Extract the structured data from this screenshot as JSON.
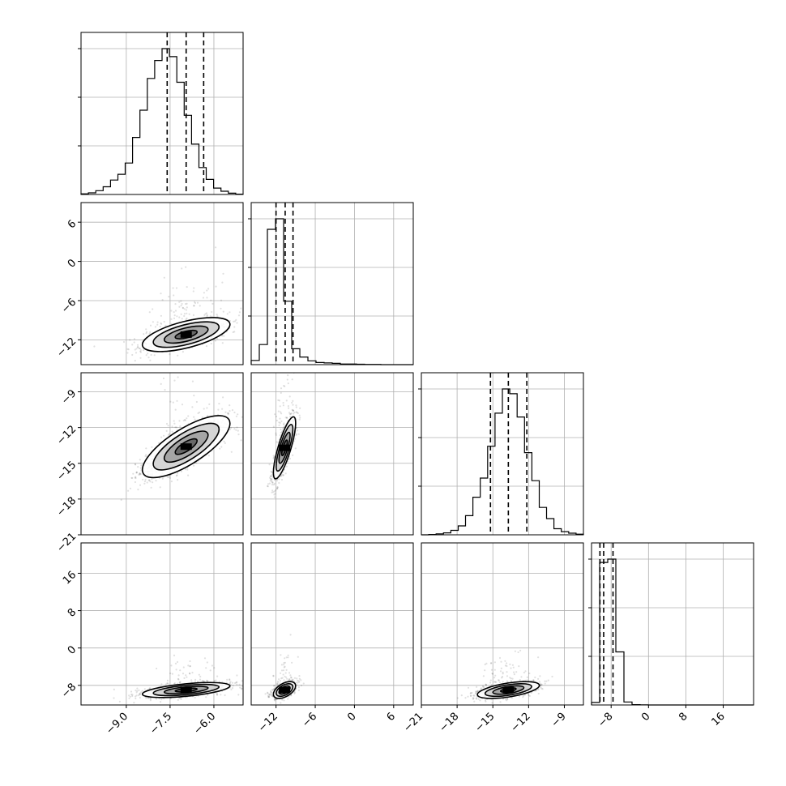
{
  "chart_data": {
    "type": "scatter",
    "description_of_layout": "corner",
    "variables": [
      {
        "index": 0,
        "range": [
          -10.55,
          -5.0
        ],
        "ticks": [
          -9.0,
          -7.5,
          -6.0
        ],
        "tick_labels": [
          "−9.0",
          "−7.5",
          "−6.0"
        ],
        "hist_lines": [
          -7.6,
          -6.95,
          -6.35
        ],
        "hist_peak": 1.0,
        "hist_counts": [
          2,
          5,
          12,
          24,
          45,
          63,
          98,
          178,
          263,
          362,
          418,
          455,
          430,
          350,
          247,
          157,
          84,
          47,
          20,
          10,
          4,
          1
        ]
      },
      {
        "index": 1,
        "range": [
          -15.8,
          9.0
        ],
        "ticks": [
          -12,
          -6,
          0,
          6
        ],
        "tick_labels": [
          "−12",
          "−6",
          "0",
          "6"
        ],
        "hist_lines": [
          -12.0,
          -10.6,
          -9.4
        ],
        "hist_peak": 1.0,
        "hist_counts": [
          20,
          95,
          640,
          690,
          300,
          75,
          36,
          18,
          10,
          8,
          6,
          3,
          3,
          2,
          1,
          1,
          0,
          0,
          0,
          0
        ]
      },
      {
        "index": 2,
        "range": [
          -21.0,
          -7.4
        ],
        "ticks": [
          -21,
          -18,
          -15,
          -12,
          -9
        ],
        "tick_labels": [
          "−21",
          "−18",
          "−15",
          "−12",
          "−9"
        ],
        "hist_lines": [
          -15.2,
          -13.7,
          -12.15
        ],
        "hist_peak": 1.0,
        "hist_counts": [
          0,
          1,
          3,
          6,
          14,
          28,
          60,
          118,
          178,
          278,
          382,
          458,
          443,
          370,
          258,
          170,
          86,
          51,
          19,
          10,
          5,
          2
        ]
      },
      {
        "index": 3,
        "range": [
          -12.2,
          22.5
        ],
        "ticks": [
          -8,
          0,
          8,
          16
        ],
        "tick_labels": [
          "−8",
          "0",
          "8",
          "16"
        ],
        "hist_lines": [
          -10.4,
          -9.6,
          -7.6
        ],
        "hist_peak": 1.0,
        "hist_counts": [
          15,
          860,
          880,
          320,
          18,
          2,
          1,
          0,
          0,
          0,
          0,
          0,
          0,
          0,
          0,
          0,
          0,
          0,
          0,
          0
        ]
      }
    ],
    "pairs": [
      {
        "row": 1,
        "col": 0,
        "center": [
          -6.95,
          -11.2
        ],
        "sd": [
          0.75,
          1.3
        ],
        "corr": 0.6
      },
      {
        "row": 2,
        "col": 0,
        "center": [
          -6.95,
          -13.6
        ],
        "sd": [
          0.75,
          1.3
        ],
        "corr": 0.75
      },
      {
        "row": 3,
        "col": 0,
        "center": [
          -6.95,
          -9.0
        ],
        "sd": [
          0.75,
          0.8
        ],
        "corr": 0.55
      },
      {
        "row": 2,
        "col": 1,
        "center": [
          -10.7,
          -13.7
        ],
        "sd": [
          0.85,
          1.3
        ],
        "corr": 0.8
      },
      {
        "row": 3,
        "col": 1,
        "center": [
          -10.7,
          -9.0
        ],
        "sd": [
          0.85,
          0.9
        ],
        "corr": 0.5
      },
      {
        "row": 3,
        "col": 2,
        "center": [
          -13.7,
          -9.0
        ],
        "sd": [
          1.3,
          0.9
        ],
        "corr": 0.55
      }
    ],
    "contour_levels_sigma": [
      0.5,
      1.0,
      1.5,
      2.0
    ],
    "grid": true,
    "xlabel": "",
    "ylabel": "",
    "title": ""
  }
}
